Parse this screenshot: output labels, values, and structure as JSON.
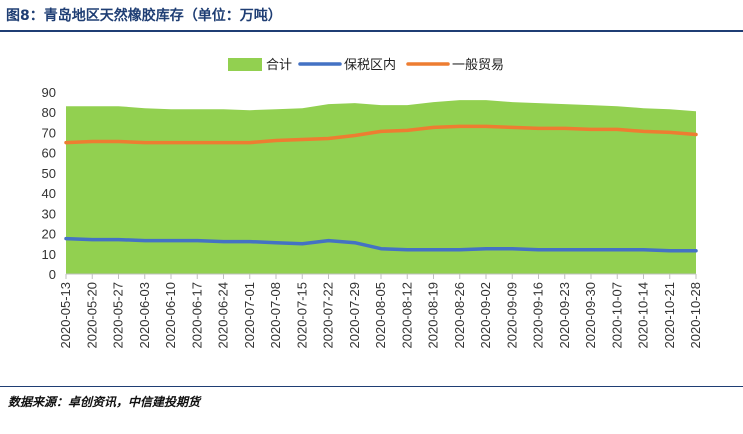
{
  "header": {
    "title": "图8：青岛地区天然橡胶库存（单位：万吨）"
  },
  "footer": {
    "source": "数据来源：卓创资讯，中信建投期货"
  },
  "colors": {
    "total": "#92d050",
    "bonded": "#4472c4",
    "general": "#ed7d31",
    "rule": "#1f3e74"
  },
  "chart_data": {
    "type": "area",
    "title": "",
    "xlabel": "",
    "ylabel": "",
    "ylim": [
      0,
      90
    ],
    "yticks": [
      0,
      10,
      20,
      30,
      40,
      50,
      60,
      70,
      80,
      90
    ],
    "legend_position": "top",
    "grid": false,
    "x": [
      "2020-05-13",
      "2020-05-20",
      "2020-05-27",
      "2020-06-03",
      "2020-06-10",
      "2020-06-17",
      "2020-06-24",
      "2020-07-01",
      "2020-07-08",
      "2020-07-15",
      "2020-07-22",
      "2020-07-29",
      "2020-08-05",
      "2020-08-12",
      "2020-08-19",
      "2020-08-26",
      "2020-09-02",
      "2020-09-09",
      "2020-09-16",
      "2020-09-23",
      "2020-09-30",
      "2020-10-07",
      "2020-10-14",
      "2020-10-21",
      "2020-10-28"
    ],
    "series": [
      {
        "name": "合计",
        "kind": "area",
        "color": "#92d050",
        "values": [
          83.0,
          83.0,
          83.0,
          82.0,
          81.5,
          81.5,
          81.5,
          81.0,
          81.5,
          82.0,
          84.0,
          84.5,
          83.5,
          83.5,
          85.0,
          86.0,
          86.0,
          85.0,
          84.5,
          84.0,
          83.5,
          83.0,
          82.0,
          81.5,
          80.5
        ]
      },
      {
        "name": "保税区内",
        "kind": "line",
        "color": "#4472c4",
        "values": [
          17.5,
          17.0,
          17.0,
          16.5,
          16.5,
          16.5,
          16.0,
          16.0,
          15.5,
          15.0,
          16.5,
          15.5,
          12.5,
          12.0,
          12.0,
          12.0,
          12.5,
          12.5,
          12.0,
          12.0,
          12.0,
          12.0,
          12.0,
          11.5,
          11.5
        ]
      },
      {
        "name": "一般贸易",
        "kind": "line",
        "color": "#ed7d31",
        "values": [
          65.0,
          65.5,
          65.5,
          65.0,
          65.0,
          65.0,
          65.0,
          65.0,
          66.0,
          66.5,
          67.0,
          68.5,
          70.5,
          71.0,
          72.5,
          73.0,
          73.0,
          72.5,
          72.0,
          72.0,
          71.5,
          71.5,
          70.5,
          70.0,
          69.0
        ]
      }
    ]
  }
}
